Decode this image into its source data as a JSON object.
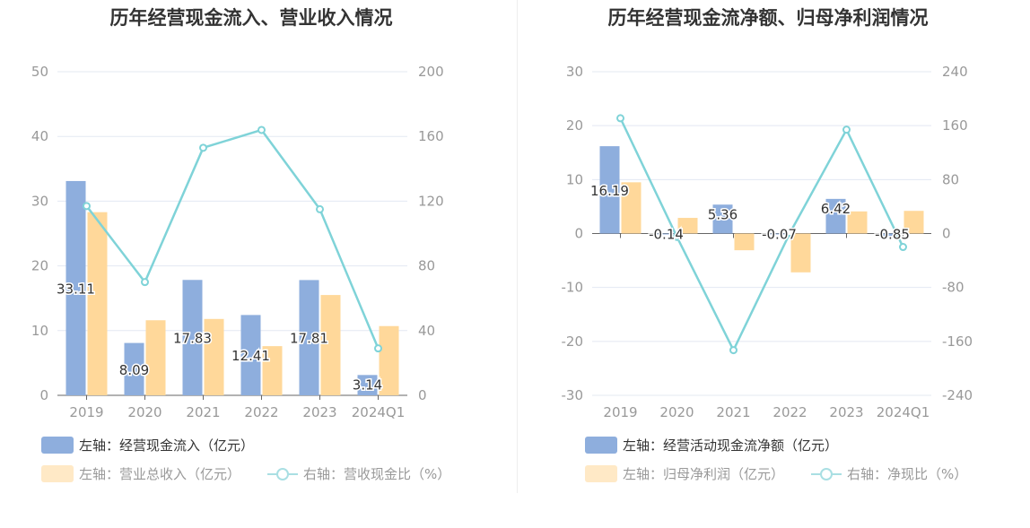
{
  "colors": {
    "bar1": "#8eaedd",
    "bar2": "#ffd89a",
    "line": "#7fd3d8",
    "grid": "#e3e8f2",
    "axis": "#666666",
    "tick": "#999999"
  },
  "chart_data": [
    {
      "type": "bar",
      "title": "历年经营现金流入、营业收入情况",
      "categories": [
        "2019",
        "2020",
        "2021",
        "2022",
        "2023",
        "2024Q1"
      ],
      "left_axis": {
        "ylim": [
          0,
          50
        ],
        "ticks": [
          "0",
          "10",
          "20",
          "30",
          "40",
          "50"
        ]
      },
      "right_axis": {
        "ylim": [
          0,
          200
        ],
        "ticks": [
          "0",
          "40",
          "80",
          "120",
          "160",
          "200"
        ]
      },
      "series": [
        {
          "name": "左轴：经营现金流入（亿元）",
          "kind": "bar",
          "axis": "left",
          "values": [
            33.11,
            8.09,
            17.83,
            12.41,
            17.81,
            3.14
          ],
          "labels": [
            "33.11",
            "8.09",
            "17.83",
            "12.41",
            "17.81",
            "3.14"
          ]
        },
        {
          "name": "左轴：营业总收入（亿元）",
          "kind": "bar",
          "axis": "left",
          "values": [
            28.3,
            11.6,
            11.8,
            7.6,
            15.5,
            10.7
          ]
        },
        {
          "name": "右轴：营收现金比（%）",
          "kind": "line",
          "axis": "right",
          "values": [
            117,
            70,
            153,
            164,
            115,
            29
          ]
        }
      ]
    },
    {
      "type": "bar",
      "title": "历年经营现金流净额、归母净利润情况",
      "categories": [
        "2019",
        "2020",
        "2021",
        "2022",
        "2023",
        "2024Q1"
      ],
      "left_axis": {
        "ylim": [
          -30,
          30
        ],
        "ticks": [
          "-30",
          "-20",
          "-10",
          "0",
          "10",
          "20",
          "30"
        ]
      },
      "right_axis": {
        "ylim": [
          -240,
          240
        ],
        "ticks": [
          "-240",
          "-160",
          "-80",
          "0",
          "80",
          "160",
          "240"
        ]
      },
      "series": [
        {
          "name": "左轴：经营活动现金流净额（亿元）",
          "kind": "bar",
          "axis": "left",
          "values": [
            16.19,
            -0.14,
            5.36,
            -0.07,
            6.42,
            -0.85
          ],
          "labels": [
            "16.19",
            "-0.14",
            "5.36",
            "-0.07",
            "6.42",
            "-0.85"
          ]
        },
        {
          "name": "左轴：归母净利润（亿元）",
          "kind": "bar",
          "axis": "left",
          "values": [
            9.5,
            2.9,
            -3.1,
            -7.2,
            4.1,
            4.2
          ]
        },
        {
          "name": "右轴：净现比（%）",
          "kind": "line",
          "axis": "right",
          "values": [
            171,
            -5,
            -173,
            1,
            154,
            -20
          ]
        }
      ]
    }
  ]
}
